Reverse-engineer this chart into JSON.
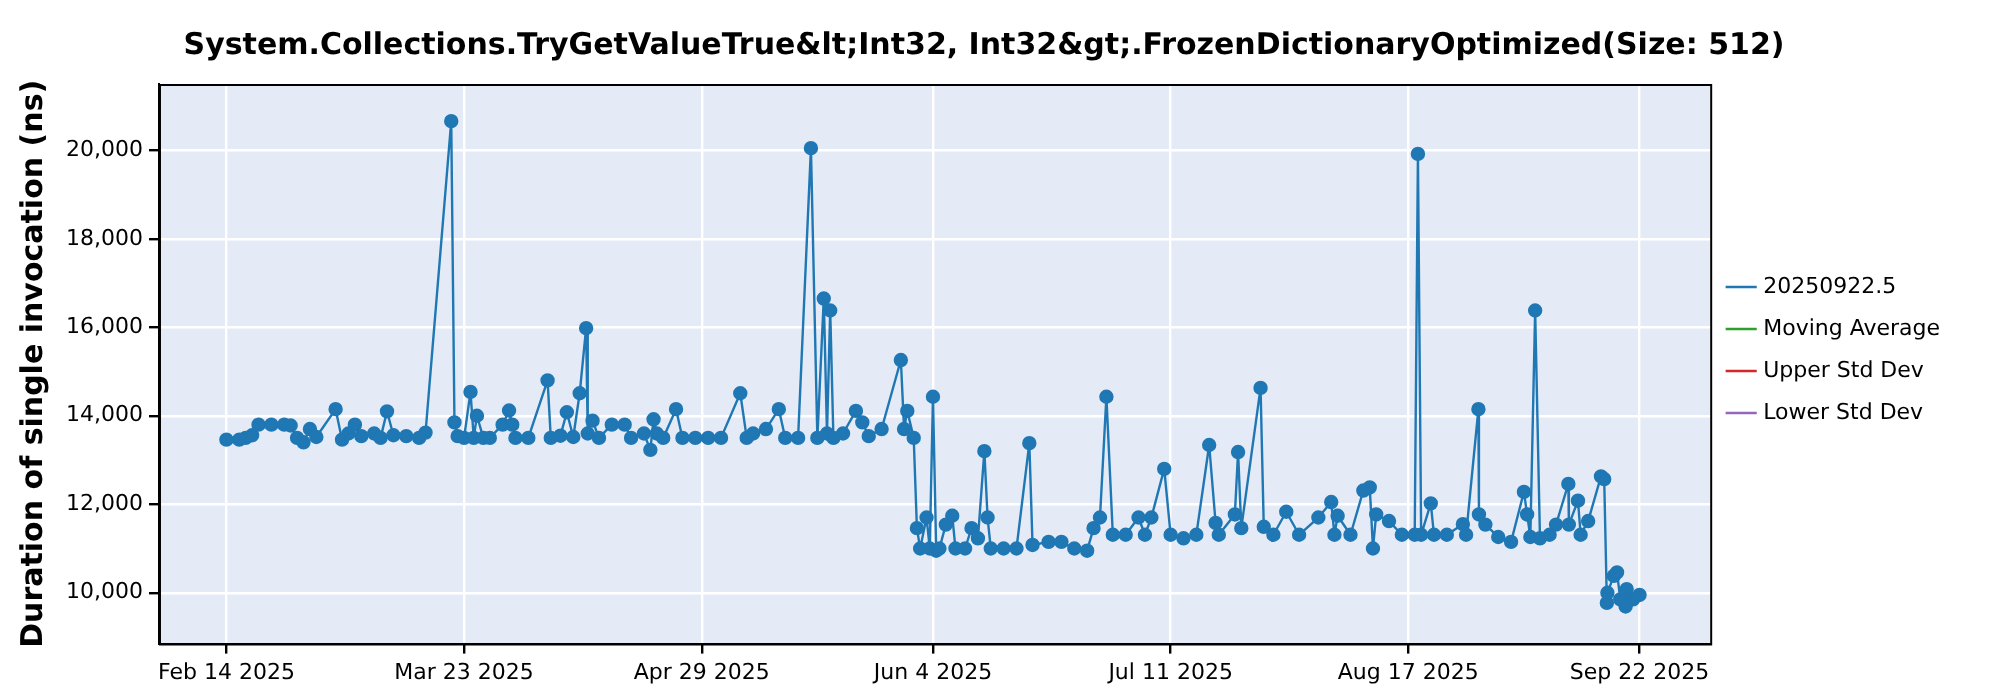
{
  "chart_data": {
    "type": "line",
    "title": "System.Collections.TryGetValueTrue&lt;Int32, Int32&gt;.FrozenDictionaryOptimized(Size: 512)",
    "ylabel": "Duration of single invocation (ns)",
    "x": [
      "2025-02-14",
      "2025-02-16",
      "2025-02-17",
      "2025-02-18",
      "2025-02-19",
      "2025-02-21",
      "2025-02-23",
      "2025-02-24",
      "2025-02-25",
      "2025-02-26",
      "2025-02-27",
      "2025-02-28",
      "2025-03-03",
      "2025-03-04",
      "2025-03-05",
      "2025-03-06",
      "2025-03-07",
      "2025-03-09",
      "2025-03-10",
      "2025-03-11",
      "2025-03-12",
      "2025-03-14",
      "2025-03-16",
      "2025-03-17",
      "2025-03-21",
      "2025-03-21T12:00",
      "2025-03-22",
      "2025-03-23",
      "2025-03-24",
      "2025-03-24T12:00",
      "2025-03-25",
      "2025-03-26",
      "2025-03-27",
      "2025-03-29",
      "2025-03-30",
      "2025-03-30T12:00",
      "2025-03-31",
      "2025-04-02",
      "2025-04-05",
      "2025-04-05T12:00",
      "2025-04-07",
      "2025-04-08",
      "2025-04-09",
      "2025-04-10",
      "2025-04-11",
      "2025-04-11T06:00",
      "2025-04-12",
      "2025-04-13",
      "2025-04-15",
      "2025-04-17",
      "2025-04-18",
      "2025-04-20",
      "2025-04-21",
      "2025-04-21T12:00",
      "2025-04-22",
      "2025-04-23",
      "2025-04-25",
      "2025-04-26",
      "2025-04-28",
      "2025-04-30",
      "2025-05-02",
      "2025-05-05",
      "2025-05-06",
      "2025-05-07",
      "2025-05-09",
      "2025-05-11",
      "2025-05-12",
      "2025-05-14",
      "2025-05-16",
      "2025-05-17",
      "2025-05-18",
      "2025-05-18T12:00",
      "2025-05-19",
      "2025-05-19T12:00",
      "2025-05-21",
      "2025-05-23",
      "2025-05-24",
      "2025-05-25",
      "2025-05-27",
      "2025-05-30",
      "2025-05-30T12:00",
      "2025-05-31",
      "2025-06-01",
      "2025-06-01T12:00",
      "2025-06-02",
      "2025-06-03",
      "2025-06-03T12:00",
      "2025-06-04",
      "2025-06-04T12:00",
      "2025-06-05",
      "2025-06-06",
      "2025-06-07",
      "2025-06-07T12:00",
      "2025-06-09",
      "2025-06-10",
      "2025-06-11",
      "2025-06-12",
      "2025-06-12T12:00",
      "2025-06-13",
      "2025-06-15",
      "2025-06-17",
      "2025-06-19",
      "2025-06-19T12:00",
      "2025-06-22",
      "2025-06-24",
      "2025-06-26",
      "2025-06-28",
      "2025-06-29",
      "2025-06-30",
      "2025-07-01",
      "2025-07-02",
      "2025-07-04",
      "2025-07-06",
      "2025-07-07",
      "2025-07-08",
      "2025-07-10",
      "2025-07-11",
      "2025-07-13",
      "2025-07-15",
      "2025-07-17",
      "2025-07-18",
      "2025-07-18T12:00",
      "2025-07-21",
      "2025-07-21T12:00",
      "2025-07-22",
      "2025-07-25",
      "2025-07-25T12:00",
      "2025-07-27",
      "2025-07-29",
      "2025-07-31",
      "2025-08-03",
      "2025-08-05",
      "2025-08-05T12:00",
      "2025-08-06",
      "2025-08-08",
      "2025-08-10",
      "2025-08-11",
      "2025-08-11T12:00",
      "2025-08-12",
      "2025-08-14",
      "2025-08-16",
      "2025-08-18",
      "2025-08-18T12:00",
      "2025-08-19",
      "2025-08-20T12:00",
      "2025-08-21",
      "2025-08-23",
      "2025-08-25T12:00",
      "2025-08-26",
      "2025-08-27T22:00",
      "2025-08-28",
      "2025-08-29",
      "2025-08-31",
      "2025-09-02",
      "2025-09-04",
      "2025-09-04T12:00",
      "2025-09-05",
      "2025-09-05T18:00",
      "2025-09-06T12:00",
      "2025-09-08",
      "2025-09-09",
      "2025-09-10T22:00",
      "2025-09-11",
      "2025-09-12T10:00",
      "2025-09-12T20:00",
      "2025-09-14",
      "2025-09-16",
      "2025-09-16T12:00",
      "2025-09-16T22:00",
      "2025-09-17",
      "2025-09-18",
      "2025-09-18T12:00",
      "2025-09-19",
      "2025-09-19T20:00",
      "2025-09-20",
      "2025-09-21",
      "2025-09-22"
    ],
    "series": [
      {
        "name": "20250922.5",
        "color": "#1f77b4",
        "values": [
          13460,
          13460,
          13500,
          13560,
          13800,
          13800,
          13800,
          13780,
          13500,
          13400,
          13700,
          13520,
          14150,
          13460,
          13600,
          13800,
          13540,
          13600,
          13500,
          14100,
          13560,
          13540,
          13500,
          13620,
          20660,
          13850,
          13540,
          13500,
          14540,
          13500,
          14000,
          13500,
          13500,
          13800,
          14120,
          13800,
          13500,
          13500,
          14800,
          13500,
          13550,
          14080,
          13520,
          14510,
          15980,
          13600,
          13890,
          13500,
          13800,
          13800,
          13500,
          13600,
          13230,
          13920,
          13600,
          13500,
          14150,
          13500,
          13500,
          13500,
          13500,
          14510,
          13500,
          13600,
          13700,
          14150,
          13500,
          13500,
          20050,
          13500,
          16650,
          13600,
          16380,
          13500,
          13600,
          14110,
          13850,
          13540,
          13700,
          15260,
          13700,
          14110,
          13500,
          11460,
          11000,
          11700,
          11000,
          14430,
          10950,
          11000,
          11540,
          11740,
          11000,
          11000,
          11460,
          11230,
          13200,
          11700,
          11000,
          11000,
          11000,
          13380,
          11080,
          11150,
          11150,
          11000,
          10950,
          11460,
          11700,
          14430,
          11310,
          11310,
          11700,
          11310,
          11700,
          12800,
          11310,
          11230,
          11310,
          13340,
          11580,
          11310,
          11770,
          13180,
          11460,
          14630,
          11490,
          11310,
          11830,
          11310,
          11700,
          12050,
          11310,
          11740,
          11310,
          12310,
          12380,
          11000,
          11770,
          11620,
          11310,
          11310,
          19920,
          11310,
          12020,
          11310,
          11310,
          11550,
          11310,
          14150,
          11770,
          11540,
          11260,
          11150,
          12280,
          11770,
          11260,
          16380,
          11230,
          11310,
          11540,
          12460,
          11540,
          12080,
          11310,
          11620,
          12630,
          12570,
          9770,
          10000,
          10380,
          10460,
          9850,
          9690,
          10080,
          9850,
          9950
        ]
      },
      {
        "name": "Moving Average",
        "color": "#2ca02c",
        "values": [
          null,
          null,
          null,
          null,
          null,
          null,
          null,
          null,
          null,
          null,
          null,
          null,
          null,
          null,
          null,
          null,
          null,
          null,
          null,
          null,
          null,
          null,
          null,
          null,
          null,
          null,
          null,
          null,
          null,
          null,
          null,
          null,
          null,
          null,
          null,
          null,
          null,
          null,
          null,
          null,
          null,
          null,
          null,
          null,
          null,
          null,
          null,
          null,
          null,
          null,
          null,
          null,
          null,
          null,
          null,
          null,
          null,
          null,
          null,
          null,
          null,
          null,
          null,
          null,
          null,
          null,
          null,
          null,
          null,
          null,
          null,
          null,
          null,
          null,
          null,
          null,
          null,
          null,
          null,
          null,
          null,
          null,
          null,
          null,
          null,
          null,
          null,
          null,
          null,
          null,
          null,
          null,
          null,
          null,
          null,
          null,
          null,
          null,
          null,
          null,
          null,
          null,
          null,
          null,
          null,
          null,
          null,
          null,
          null,
          null,
          null,
          null,
          null,
          null,
          null,
          null,
          null,
          null,
          null,
          null,
          null,
          null,
          null,
          null,
          null,
          null,
          null,
          null,
          null,
          null,
          null,
          null,
          null,
          null,
          null,
          null,
          null,
          null,
          null,
          null,
          null,
          null,
          null,
          null,
          null,
          null,
          null,
          null,
          null,
          null,
          null,
          null,
          null,
          null,
          null,
          null,
          null,
          null,
          null,
          null,
          null,
          null,
          null,
          null,
          null,
          null,
          null,
          null,
          null,
          null,
          null,
          null,
          null,
          null,
          null,
          null,
          null
        ]
      },
      {
        "name": "Upper Std Dev",
        "color": "#d62728",
        "values": [
          null,
          null,
          null,
          null,
          null,
          null,
          null,
          null,
          null,
          null,
          null,
          null,
          null,
          null,
          null,
          null,
          null,
          null,
          null,
          null,
          null,
          null,
          null,
          null,
          null,
          null,
          null,
          null,
          null,
          null,
          null,
          null,
          null,
          null,
          null,
          null,
          null,
          null,
          null,
          null,
          null,
          null,
          null,
          null,
          null,
          null,
          null,
          null,
          null,
          null,
          null,
          null,
          null,
          null,
          null,
          null,
          null,
          null,
          null,
          null,
          null,
          null,
          null,
          null,
          null,
          null,
          null,
          null,
          null,
          null,
          null,
          null,
          null,
          null,
          null,
          null,
          null,
          null,
          null,
          null,
          null,
          null,
          null,
          null,
          null,
          null,
          null,
          null,
          null,
          null,
          null,
          null,
          null,
          null,
          null,
          null,
          null,
          null,
          null,
          null,
          null,
          null,
          null,
          null,
          null,
          null,
          null,
          null,
          null,
          null,
          null,
          null,
          null,
          null,
          null,
          null,
          null,
          null,
          null,
          null,
          null,
          null,
          null,
          null,
          null,
          null,
          null,
          null,
          null,
          null,
          null,
          null,
          null,
          null,
          null,
          null,
          null,
          null,
          null,
          null,
          null,
          null,
          null,
          null,
          null,
          null,
          null,
          null,
          null,
          null,
          null,
          null,
          null,
          null,
          null,
          null,
          null,
          null,
          null,
          null,
          null,
          null,
          null,
          null,
          null,
          null,
          null,
          null,
          null,
          null,
          null,
          null,
          null,
          null,
          null,
          null,
          null
        ]
      },
      {
        "name": "Lower Std Dev",
        "color": "#9467bd",
        "values": [
          null,
          null,
          null,
          null,
          null,
          null,
          null,
          null,
          null,
          null,
          null,
          null,
          null,
          null,
          null,
          null,
          null,
          null,
          null,
          null,
          null,
          null,
          null,
          null,
          null,
          null,
          null,
          null,
          null,
          null,
          null,
          null,
          null,
          null,
          null,
          null,
          null,
          null,
          null,
          null,
          null,
          null,
          null,
          null,
          null,
          null,
          null,
          null,
          null,
          null,
          null,
          null,
          null,
          null,
          null,
          null,
          null,
          null,
          null,
          null,
          null,
          null,
          null,
          null,
          null,
          null,
          null,
          null,
          null,
          null,
          null,
          null,
          null,
          null,
          null,
          null,
          null,
          null,
          null,
          null,
          null,
          null,
          null,
          null,
          null,
          null,
          null,
          null,
          null,
          null,
          null,
          null,
          null,
          null,
          null,
          null,
          null,
          null,
          null,
          null,
          null,
          null,
          null,
          null,
          null,
          null,
          null,
          null,
          null,
          null,
          null,
          null,
          null,
          null,
          null,
          null,
          null,
          null,
          null,
          null,
          null,
          null,
          null,
          null,
          null,
          null,
          null,
          null,
          null,
          null,
          null,
          null,
          null,
          null,
          null,
          null,
          null,
          null,
          null,
          null,
          null,
          null,
          null,
          null,
          null,
          null,
          null,
          null,
          null,
          null,
          null,
          null,
          null,
          null,
          null,
          null,
          null,
          null,
          null,
          null,
          null,
          null,
          null,
          null,
          null,
          null,
          null,
          null,
          null,
          null,
          null,
          null,
          null,
          null,
          null,
          null,
          null
        ]
      }
    ],
    "xlim": [
      "2025-02-03T12:00",
      "2025-10-03"
    ],
    "xticks": [
      {
        "value": "2025-02-14",
        "label": "Feb 14 2025"
      },
      {
        "value": "2025-03-23",
        "label": "Mar 23 2025"
      },
      {
        "value": "2025-04-29",
        "label": "Apr 29 2025"
      },
      {
        "value": "2025-06-04",
        "label": "Jun 4 2025"
      },
      {
        "value": "2025-07-11",
        "label": "Jul 11 2025"
      },
      {
        "value": "2025-08-17",
        "label": "Aug 17 2025"
      },
      {
        "value": "2025-09-22",
        "label": "Sep 22 2025"
      }
    ],
    "ylim": [
      8850,
      21500
    ],
    "yticks": [
      {
        "value": 10000,
        "label": "10,000"
      },
      {
        "value": 12000,
        "label": "12,000"
      },
      {
        "value": 14000,
        "label": "14,000"
      },
      {
        "value": 16000,
        "label": "16,000"
      },
      {
        "value": 18000,
        "label": "18,000"
      },
      {
        "value": 20000,
        "label": "20,000"
      }
    ],
    "grid": true,
    "legend": "right",
    "marker": "circle",
    "line_style": "solid"
  }
}
